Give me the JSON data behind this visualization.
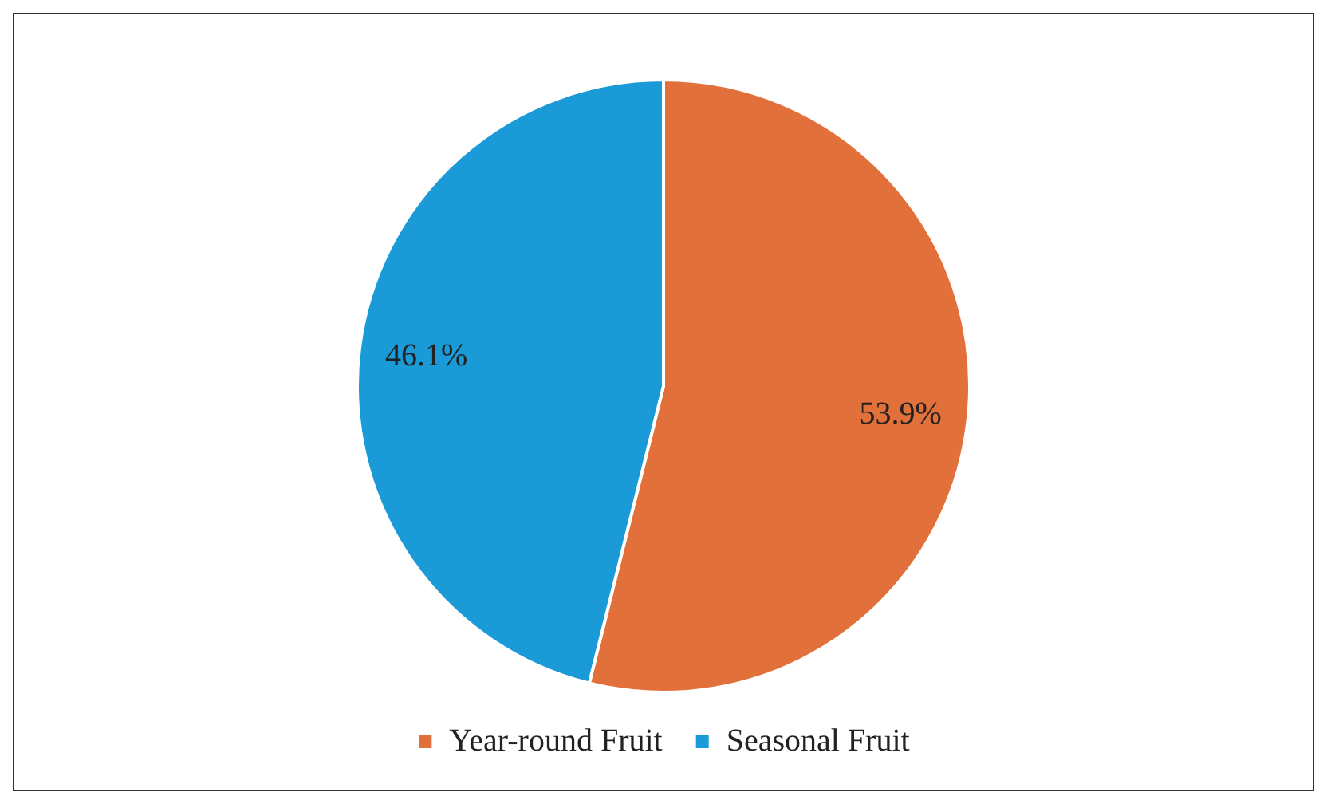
{
  "chart_data": {
    "type": "pie",
    "categories": [
      "Year-round Fruit",
      "Seasonal Fruit"
    ],
    "values": [
      53.9,
      46.1
    ],
    "colors": [
      "#e2703a",
      "#1a9bd7"
    ],
    "value_labels": [
      "53.9%",
      "46.1%"
    ],
    "legend": "bottom"
  }
}
